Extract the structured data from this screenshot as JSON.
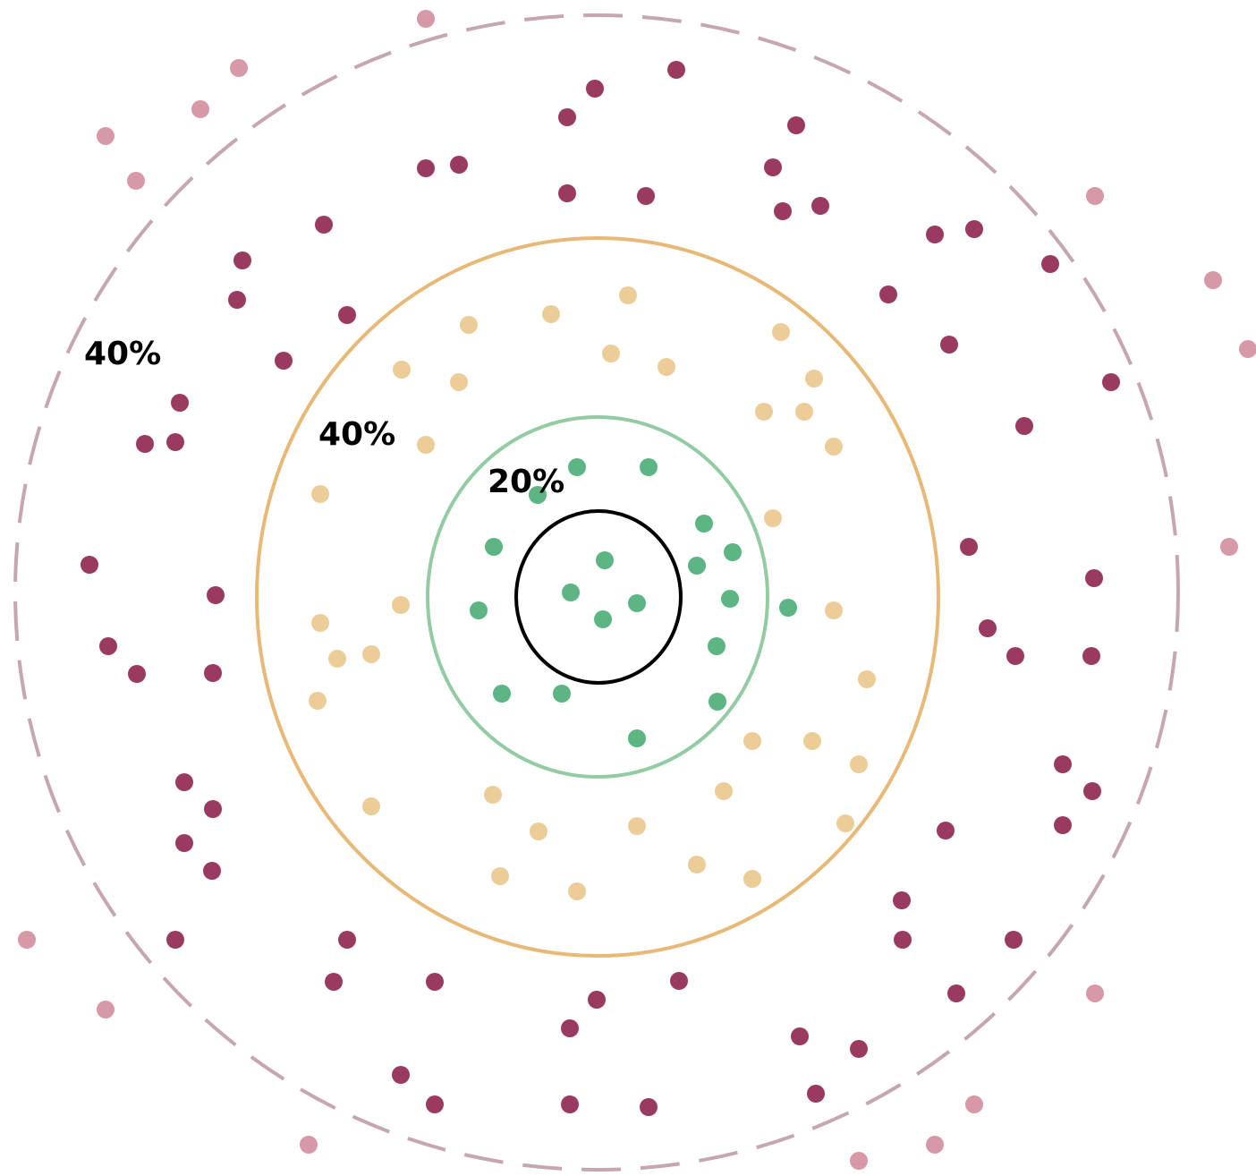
{
  "labels": {
    "outer_ring": "40%",
    "middle_ring": "40%",
    "inner_ring": "20%"
  },
  "colors": {
    "center_stroke": "#000000",
    "inner_ring_stroke": "#93cba3",
    "middle_ring_stroke": "#e8b877",
    "outer_ring_stroke": "#c6a6b2",
    "center_dot": "#5cb582",
    "inner_dot": "#5cb582",
    "middle_dot": "#eccd97",
    "outer_dot": "#9b3a61",
    "beyond_dot": "#d798a8"
  },
  "dot_groups": [
    {
      "name": "center",
      "color_key": "center_dot",
      "count": 4
    },
    {
      "name": "inner",
      "color_key": "inner_dot",
      "count": 16
    },
    {
      "name": "middle",
      "color_key": "middle_dot",
      "count": 36
    },
    {
      "name": "outer",
      "color_key": "outer_dot",
      "count": 76
    },
    {
      "name": "beyond",
      "color_key": "beyond_dot",
      "count": 17
    }
  ]
}
